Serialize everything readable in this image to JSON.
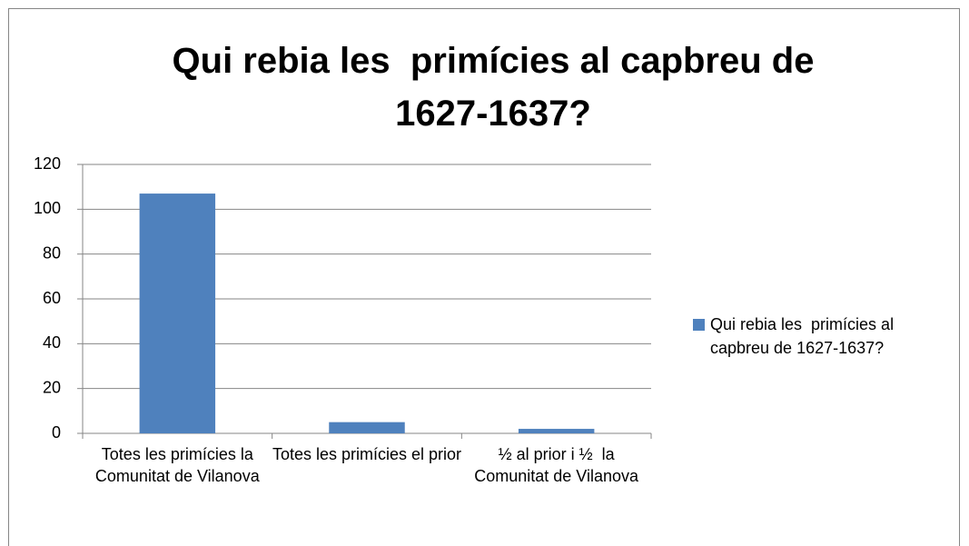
{
  "chart_data": {
    "type": "bar",
    "title": "Qui rebia les  primícies al capbreu de 1627-1637?",
    "categories": [
      "Totes les primícies la Comunitat de Vilanova",
      "Totes les primícies el prior",
      "½ al prior i ½  la Comunitat de Vilanova"
    ],
    "series": [
      {
        "name": "Qui rebia les  primícies al capbreu de 1627-1637?",
        "color": "#4f81bd",
        "values": [
          107,
          5,
          2
        ]
      }
    ],
    "ylim": [
      0,
      120
    ],
    "yticks": [
      0,
      20,
      40,
      60,
      80,
      100,
      120
    ],
    "grid": true,
    "legend": "right"
  }
}
